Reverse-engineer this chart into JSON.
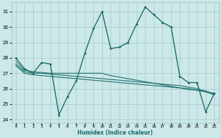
{
  "xlabel": "Humidex (Indice chaleur)",
  "background_color": "#cce8e8",
  "grid_color": "#aacccc",
  "line_color": "#1a6b6b",
  "ylim": [
    23.8,
    31.6
  ],
  "xlim": [
    -0.5,
    23.5
  ],
  "yticks": [
    24,
    25,
    26,
    27,
    28,
    29,
    30,
    31
  ],
  "xticks": [
    0,
    1,
    2,
    3,
    4,
    5,
    6,
    7,
    8,
    9,
    10,
    11,
    12,
    13,
    14,
    15,
    16,
    17,
    18,
    19,
    20,
    21,
    22,
    23
  ],
  "series1": [
    28.0,
    27.3,
    27.0,
    27.7,
    27.6,
    24.3,
    25.5,
    26.5,
    28.3,
    29.9,
    31.0,
    28.6,
    28.7,
    29.0,
    30.2,
    31.3,
    30.8,
    30.3,
    30.0,
    26.8,
    26.4,
    26.4,
    24.5,
    25.7
  ],
  "series2": [
    27.8,
    27.2,
    27.1,
    27.05,
    27.0,
    27.0,
    27.0,
    27.0,
    27.0,
    27.0,
    27.0,
    26.85,
    26.75,
    26.65,
    26.55,
    26.45,
    26.35,
    26.25,
    26.15,
    26.05,
    25.95,
    25.9,
    25.8,
    25.7
  ],
  "series3": [
    27.6,
    27.1,
    27.0,
    27.0,
    26.95,
    26.9,
    26.85,
    26.8,
    26.75,
    26.7,
    26.65,
    26.6,
    26.55,
    26.5,
    26.45,
    26.4,
    26.35,
    26.3,
    26.25,
    26.2,
    26.1,
    26.0,
    25.85,
    25.65
  ],
  "series4": [
    27.5,
    27.0,
    26.9,
    26.85,
    26.8,
    26.75,
    26.7,
    26.65,
    26.6,
    26.55,
    26.5,
    26.45,
    26.4,
    26.35,
    26.3,
    26.25,
    26.2,
    26.15,
    26.1,
    26.05,
    26.0,
    25.9,
    25.8,
    25.6
  ]
}
